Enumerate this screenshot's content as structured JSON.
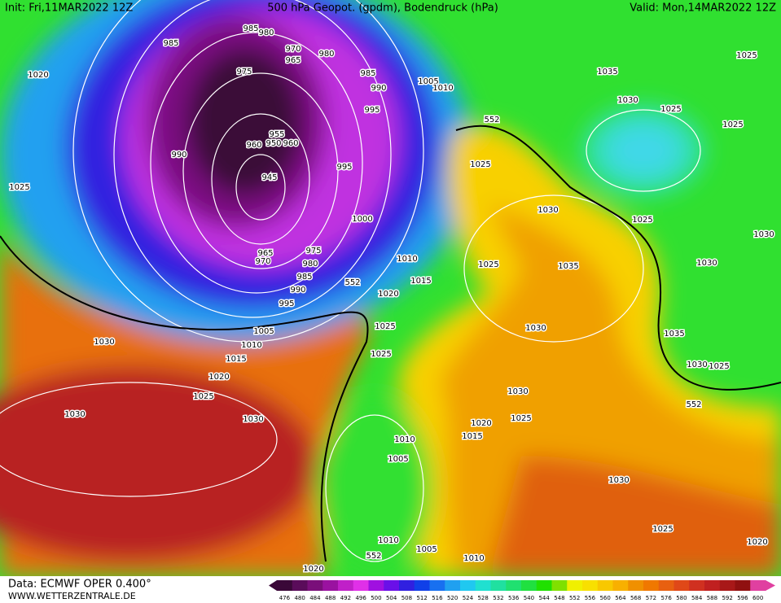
{
  "header": {
    "init": "Init: Fri,11MAR2022 12Z",
    "title": "500 hPa Geopot. (gpdm), Bodendruck (hPa)",
    "valid": "Valid: Mon,14MAR2022 12Z"
  },
  "isobar_labels": [
    985,
    985,
    980,
    970,
    965,
    980,
    975,
    985,
    990,
    995,
    1020,
    990,
    955,
    960,
    950,
    960,
    945,
    995,
    1000,
    975,
    965,
    970,
    980,
    985,
    990,
    995,
    1025,
    1005,
    1010,
    552,
    1025,
    1035,
    1025,
    1030,
    1025,
    1025,
    1030,
    1025,
    1030,
    1030,
    1010,
    1015,
    1025,
    1035,
    552,
    1020,
    1025,
    1030,
    1035,
    1030,
    1025,
    552,
    1025,
    1005,
    1010,
    1015,
    1020,
    1030,
    1025,
    1030,
    1025,
    1030,
    1030,
    1020,
    1015,
    1010,
    1005,
    1030,
    1025,
    1020,
    1010,
    552,
    1005,
    1010,
    1020
  ],
  "colorbar": {
    "levels": [
      476,
      480,
      484,
      488,
      492,
      496,
      500,
      504,
      508,
      512,
      516,
      520,
      524,
      528,
      532,
      536,
      540,
      544,
      548,
      552,
      556,
      560,
      564,
      568,
      572,
      576,
      580,
      584,
      588,
      592,
      596,
      600
    ],
    "colors": [
      "#3a0838",
      "#5a0c5a",
      "#7a0f7a",
      "#9a12a0",
      "#c020c8",
      "#e030e8",
      "#a010e0",
      "#6a10e8",
      "#3020e0",
      "#1040e8",
      "#1870f0",
      "#20a0f0",
      "#20c8f0",
      "#20e0d0",
      "#20e0a0",
      "#20e070",
      "#20e040",
      "#20e000",
      "#80e000",
      "#f0f000",
      "#f8e000",
      "#f8c800",
      "#f8b000",
      "#f09000",
      "#f07800",
      "#e86010",
      "#e04818",
      "#d03020",
      "#c02020",
      "#a81818",
      "#901010",
      "#e040a0"
    ]
  },
  "footer": {
    "source": "Data: ECMWF OPER 0.400°",
    "site": "WWW.WETTERZENTRALE.DE"
  }
}
